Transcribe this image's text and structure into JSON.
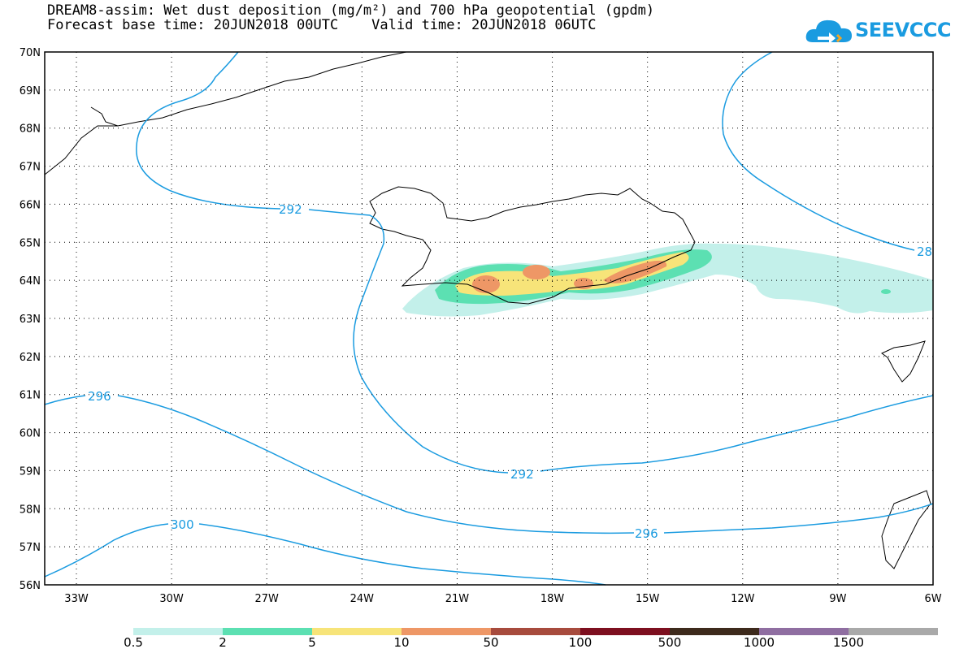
{
  "title_line1": "DREAM8-assim: Wet dust deposition (mg/m²) and 700 hPa geopotential (gpdm)",
  "title_line2": "Forecast base time: 20JUN2018 00UTC    Valid time: 20JUN2018 06UTC",
  "logo_text": "SEEVCCC",
  "lat_labels": [
    "70N",
    "69N",
    "68N",
    "67N",
    "66N",
    "65N",
    "64N",
    "63N",
    "62N",
    "61N",
    "60N",
    "59N",
    "58N",
    "57N",
    "56N"
  ],
  "lon_labels": [
    "33W",
    "30W",
    "27W",
    "24W",
    "21W",
    "18W",
    "15W",
    "12W",
    "9W",
    "6W"
  ],
  "contour_labels": [
    "292",
    "296",
    "300",
    "292",
    "296",
    "28"
  ],
  "colorbar": {
    "labels": [
      "0.5",
      "2",
      "5",
      "10",
      "50",
      "100",
      "500",
      "1000",
      "1500"
    ],
    "colors": [
      "#c3f0ea",
      "#5ce0b2",
      "#f7e479",
      "#ee9766",
      "#a74b3d",
      "#7d0f1f",
      "#3d2a1c",
      "#8f6ea1",
      "#a9a9a9"
    ]
  },
  "colors": {
    "contour": "#1a9be0",
    "frame": "#000000"
  }
}
